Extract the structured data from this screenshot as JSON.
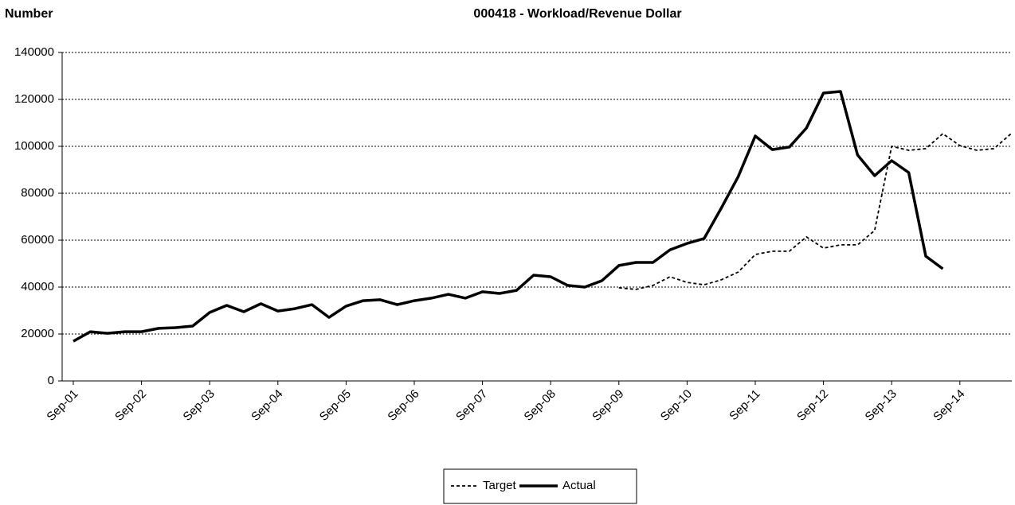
{
  "chart_data": {
    "type": "line",
    "title": "000418 - Workload/Revenue Dollar",
    "y_label": "Number",
    "categories": [
      "Sep-01",
      null,
      null,
      null,
      "Sep-02",
      null,
      null,
      null,
      "Sep-03",
      null,
      null,
      null,
      "Sep-04",
      null,
      null,
      null,
      "Sep-05",
      null,
      null,
      null,
      "Sep-06",
      null,
      null,
      null,
      "Sep-07",
      null,
      null,
      null,
      "Sep-08",
      null,
      null,
      null,
      "Sep-09",
      null,
      null,
      null,
      "Sep-10",
      null,
      null,
      null,
      "Sep-11",
      null,
      null,
      null,
      "Sep-12",
      null,
      null,
      null,
      "Sep-13",
      null,
      null,
      null,
      "Sep-14",
      null,
      null,
      null
    ],
    "series": [
      {
        "name": "Target",
        "color": "#000000",
        "dashed": true,
        "values": [
          null,
          null,
          null,
          null,
          null,
          null,
          null,
          null,
          null,
          null,
          null,
          null,
          null,
          null,
          null,
          null,
          null,
          null,
          null,
          null,
          null,
          null,
          null,
          null,
          null,
          null,
          null,
          null,
          null,
          null,
          null,
          null,
          39700,
          39000,
          40700,
          44400,
          42000,
          41000,
          43100,
          46400,
          53900,
          55300,
          55300,
          61400,
          56600,
          58000,
          58000,
          64100,
          100000,
          98300,
          99000,
          105400,
          100300,
          98300,
          99000,
          105400
        ]
      },
      {
        "name": "Actual",
        "color": "#000000",
        "dashed": false,
        "values": [
          16900,
          21000,
          20300,
          21000,
          21000,
          22400,
          22700,
          23400,
          29200,
          32200,
          29500,
          32900,
          29800,
          30800,
          32500,
          27100,
          31900,
          34200,
          34600,
          32500,
          34200,
          35300,
          36900,
          35300,
          38000,
          37300,
          38600,
          45100,
          44400,
          40700,
          40000,
          42700,
          49200,
          50500,
          50500,
          55900,
          58600,
          60700,
          73600,
          87100,
          104400,
          98600,
          99700,
          107800,
          122700,
          123400,
          96300,
          87500,
          93900,
          88800,
          53200,
          47800,
          null,
          null,
          null,
          null
        ]
      }
    ],
    "ylim": [
      0,
      140000
    ],
    "yticks": [
      0,
      20000,
      40000,
      60000,
      80000,
      100000,
      120000,
      140000
    ],
    "grid": true,
    "legend": "bottom"
  }
}
